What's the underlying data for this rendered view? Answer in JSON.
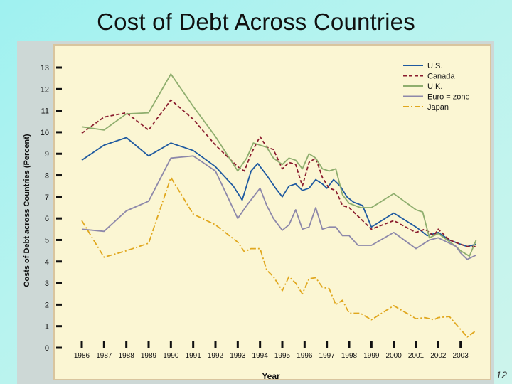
{
  "slide": {
    "title": "Cost of Debt Across Countries",
    "page_number": "12"
  },
  "chart_data": {
    "type": "line",
    "xlabel": "Year",
    "ylabel": "Costs of Debt across Countries (Percent)",
    "ylim": [
      0,
      13
    ],
    "xlim": [
      1986,
      2004
    ],
    "x_ticks": [
      "1986",
      "1987",
      "1988",
      "1989",
      "1990",
      "1991",
      "1992",
      "1993",
      "1994",
      "1995",
      "1996",
      "1997",
      "1998",
      "1999",
      "2000",
      "2001",
      "2002",
      "2003"
    ],
    "y_ticks": [
      "0",
      "1",
      "2",
      "3",
      "4",
      "5",
      "6",
      "7",
      "8",
      "9",
      "10",
      "11",
      "12",
      "13"
    ],
    "legend_position": "top-right",
    "grid": false,
    "series": [
      {
        "name": "U.S.",
        "color": "#1f5aa0",
        "dash": "solid",
        "x": [
          1986,
          1987,
          1988,
          1989,
          1990,
          1991,
          1992,
          1992.8,
          1993.2,
          1993.6,
          1993.9,
          1994.3,
          1994.7,
          1995,
          1995.3,
          1995.6,
          1995.9,
          1996.2,
          1996.5,
          1996.8,
          1997,
          1997.3,
          1997.6,
          1997.9,
          1998.2,
          1998.6,
          1999,
          2000,
          2001,
          2001.2,
          2001.5,
          2002,
          2002.5,
          2003,
          2003.3,
          2003.7
        ],
        "values": [
          8.7,
          9.4,
          9.75,
          8.9,
          9.5,
          9.15,
          8.4,
          7.5,
          6.85,
          8.2,
          8.55,
          8.0,
          7.4,
          7.0,
          7.5,
          7.6,
          7.3,
          7.4,
          7.8,
          7.6,
          7.4,
          7.8,
          7.5,
          7.0,
          6.75,
          6.6,
          5.6,
          6.25,
          5.6,
          5.45,
          5.2,
          5.35,
          5.0,
          4.8,
          4.7,
          4.8
        ]
      },
      {
        "name": "Canada",
        "color": "#8a1c2e",
        "dash": "dashed",
        "x": [
          1986,
          1987,
          1988,
          1989,
          1990,
          1991,
          1992,
          1993,
          1993.3,
          1993.6,
          1994,
          1994.3,
          1994.6,
          1995,
          1995.3,
          1995.6,
          1995.9,
          1996.2,
          1996.5,
          1996.8,
          1997.1,
          1997.4,
          1997.7,
          1998,
          1998.5,
          1999,
          2000,
          2001,
          2001.4,
          2001.8,
          2002,
          2002.5,
          2003,
          2003.3,
          2003.7
        ],
        "values": [
          9.95,
          10.7,
          10.9,
          10.1,
          11.5,
          10.6,
          9.4,
          8.4,
          8.2,
          9.0,
          9.8,
          9.3,
          9.2,
          8.3,
          8.6,
          8.5,
          7.5,
          8.6,
          8.8,
          7.9,
          7.4,
          7.3,
          6.6,
          6.5,
          6.0,
          5.5,
          5.9,
          5.35,
          5.5,
          5.2,
          5.5,
          5.0,
          4.8,
          4.7,
          4.7
        ]
      },
      {
        "name": "U.K.",
        "color": "#8fae6e",
        "dash": "solid",
        "x": [
          1986,
          1987,
          1988,
          1989,
          1990,
          1991,
          1992,
          1993,
          1993.4,
          1993.7,
          1994,
          1994.3,
          1994.6,
          1995,
          1995.3,
          1995.6,
          1995.9,
          1996.2,
          1996.5,
          1996.8,
          1997.1,
          1997.4,
          1997.7,
          1998,
          1998.5,
          1999,
          2000,
          2001,
          2001.3,
          2001.6,
          2002,
          2002.4,
          2002.8,
          2003,
          2003.4,
          2003.7
        ],
        "values": [
          10.25,
          10.1,
          10.85,
          10.9,
          12.7,
          11.2,
          9.8,
          8.2,
          8.8,
          9.5,
          9.4,
          9.3,
          8.8,
          8.5,
          8.8,
          8.7,
          8.3,
          9.0,
          8.8,
          8.3,
          8.2,
          8.3,
          7.1,
          6.7,
          6.5,
          6.5,
          7.15,
          6.4,
          6.3,
          5.1,
          5.3,
          5.0,
          4.7,
          4.5,
          4.25,
          5.0
        ]
      },
      {
        "name": "Euro = zone",
        "color": "#8d88aa",
        "dash": "solid",
        "x": [
          1986,
          1987,
          1988,
          1989,
          1990,
          1991,
          1992,
          1992.5,
          1993,
          1993.4,
          1993.7,
          1994,
          1994.3,
          1994.6,
          1995,
          1995.3,
          1995.6,
          1995.9,
          1996.2,
          1996.5,
          1996.8,
          1997.1,
          1997.4,
          1997.7,
          1998,
          1998.4,
          1999,
          2000,
          2001,
          2001.3,
          2001.6,
          2002,
          2002.4,
          2002.8,
          2003,
          2003.3,
          2003.7
        ],
        "values": [
          5.5,
          5.4,
          6.35,
          6.8,
          8.8,
          8.9,
          8.2,
          7.1,
          6.0,
          6.6,
          7.0,
          7.4,
          6.6,
          6.0,
          5.45,
          5.7,
          6.4,
          5.5,
          5.6,
          6.5,
          5.5,
          5.6,
          5.6,
          5.2,
          5.2,
          4.75,
          4.75,
          5.35,
          4.6,
          4.8,
          5.0,
          5.1,
          4.9,
          4.7,
          4.4,
          4.1,
          4.3
        ]
      },
      {
        "name": "Japan",
        "color": "#e0a71e",
        "dash": "dashdot",
        "x": [
          1986,
          1987,
          1988,
          1989,
          1990,
          1991,
          1992,
          1993,
          1993.3,
          1993.6,
          1994,
          1994.3,
          1994.6,
          1995,
          1995.3,
          1995.6,
          1995.9,
          1996.2,
          1996.5,
          1996.8,
          1997.1,
          1997.4,
          1997.7,
          1998,
          1998.5,
          1999,
          2000,
          2001,
          2001.4,
          2001.8,
          2002,
          2002.5,
          2003,
          2003.3,
          2003.7
        ],
        "values": [
          5.9,
          4.2,
          4.5,
          4.85,
          7.9,
          6.2,
          5.7,
          4.9,
          4.45,
          4.6,
          4.6,
          3.6,
          3.3,
          2.65,
          3.3,
          3.0,
          2.5,
          3.2,
          3.25,
          2.8,
          2.75,
          2.0,
          2.2,
          1.6,
          1.6,
          1.3,
          1.95,
          1.35,
          1.4,
          1.3,
          1.4,
          1.45,
          0.85,
          0.5,
          0.8
        ]
      }
    ]
  }
}
